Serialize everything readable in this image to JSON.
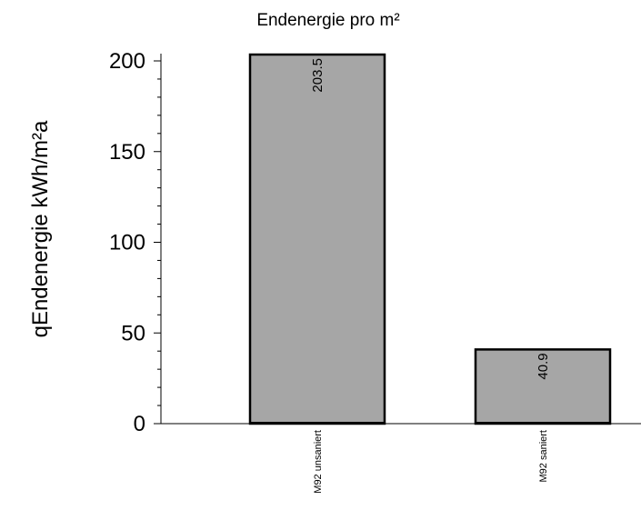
{
  "chart_data": {
    "type": "bar",
    "title": "Endenergie pro m²",
    "ylabel": "qEndenergie   kWh/m²a",
    "xlabel": "",
    "categories": [
      "M92 unsaniert",
      "M92 saniert"
    ],
    "values": [
      203.5,
      40.9
    ],
    "data_labels": [
      "203.5",
      "40.9"
    ],
    "ylim": [
      0,
      200
    ],
    "yticks": [
      "0",
      "50",
      "100",
      "150",
      "200"
    ],
    "ytick_values": [
      0,
      50,
      100,
      150,
      200
    ],
    "minor_tick_step": 10,
    "grid": false,
    "legend": "none",
    "bar_color": "#a6a6a6",
    "bar_edge_color": "#000000"
  }
}
